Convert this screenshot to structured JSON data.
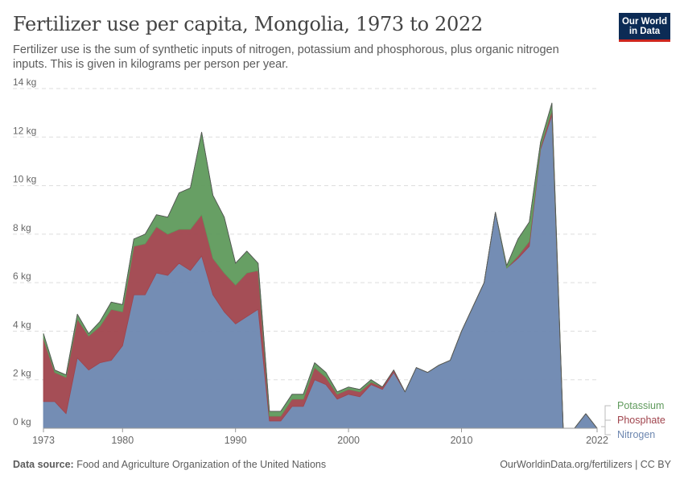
{
  "header": {
    "title": "Fertilizer use per capita, Mongolia, 1973 to 2022",
    "subtitle": "Fertilizer use is the sum of synthetic inputs of nitrogen, potassium and phosphorous, plus organic nitrogen inputs. This is given in kilograms per person per year.",
    "logo_line1": "Our World",
    "logo_line2": "in Data"
  },
  "footer": {
    "source_label": "Data source:",
    "source_text": " Food and Agriculture Organization of the United Nations",
    "link_text": "OurWorldinData.org/fertilizers | CC BY"
  },
  "colors": {
    "Nitrogen": "#6d87b0",
    "Phosphate": "#a0444d",
    "Potassium": "#5f9a5c",
    "grid": "#dddddd",
    "text": "#666666"
  },
  "chart_data": {
    "type": "area",
    "stacked": true,
    "unit": "kg",
    "ylim": [
      0,
      14
    ],
    "yticks": [
      0,
      2,
      4,
      6,
      8,
      10,
      12,
      14
    ],
    "ytick_labels": [
      "0 kg",
      "2 kg",
      "4 kg",
      "6 kg",
      "8 kg",
      "10 kg",
      "12 kg",
      "14 kg"
    ],
    "xlim": [
      1973,
      2022
    ],
    "xticks": [
      1973,
      1980,
      1990,
      2000,
      2010,
      2022
    ],
    "xtick_labels": [
      "1973",
      "1980",
      "1990",
      "2000",
      "2010",
      "2022"
    ],
    "grid": "horizontal-dashed",
    "legend": "right-bottom",
    "x": [
      1973,
      1974,
      1975,
      1976,
      1977,
      1978,
      1979,
      1980,
      1981,
      1982,
      1983,
      1984,
      1985,
      1986,
      1987,
      1988,
      1989,
      1990,
      1991,
      1992,
      1993,
      1994,
      1995,
      1996,
      1997,
      1998,
      1999,
      2000,
      2001,
      2002,
      2003,
      2004,
      2005,
      2006,
      2007,
      2008,
      2009,
      2010,
      2011,
      2012,
      2013,
      2014,
      2015,
      2016,
      2017,
      2018,
      2019,
      2020,
      2021,
      2022
    ],
    "series": [
      {
        "name": "Nitrogen",
        "values": [
          1.1,
          1.1,
          0.6,
          2.9,
          2.4,
          2.7,
          2.8,
          3.4,
          5.5,
          5.5,
          6.4,
          6.3,
          6.8,
          6.5,
          7.1,
          5.5,
          4.8,
          4.3,
          4.6,
          4.9,
          0.3,
          0.3,
          0.9,
          0.9,
          2.0,
          1.8,
          1.2,
          1.4,
          1.3,
          1.8,
          1.6,
          2.3,
          1.5,
          2.5,
          2.3,
          2.6,
          2.8,
          4.0,
          5.0,
          6.0,
          8.9,
          6.6,
          7.0,
          7.5,
          11.5,
          12.9,
          0.0,
          0.0,
          0.6,
          0.0
        ]
      },
      {
        "name": "Phosphate",
        "values": [
          2.6,
          1.2,
          1.5,
          1.6,
          1.4,
          1.5,
          2.1,
          1.4,
          2.0,
          2.1,
          1.9,
          1.7,
          1.4,
          1.7,
          1.7,
          1.5,
          1.6,
          1.6,
          1.8,
          1.6,
          0.2,
          0.2,
          0.3,
          0.3,
          0.5,
          0.3,
          0.2,
          0.2,
          0.2,
          0.1,
          0.1,
          0.1,
          0.0,
          0.0,
          0.0,
          0.0,
          0.0,
          0.0,
          0.0,
          0.0,
          0.0,
          0.0,
          0.1,
          0.2,
          0.1,
          0.2,
          0.0,
          0.0,
          0.0,
          0.0
        ]
      },
      {
        "name": "Potassium",
        "values": [
          0.2,
          0.1,
          0.1,
          0.2,
          0.1,
          0.2,
          0.3,
          0.3,
          0.3,
          0.4,
          0.5,
          0.7,
          1.5,
          1.7,
          3.4,
          2.6,
          2.3,
          0.9,
          0.9,
          0.3,
          0.2,
          0.2,
          0.2,
          0.2,
          0.2,
          0.2,
          0.1,
          0.1,
          0.1,
          0.1,
          0.0,
          0.0,
          0.0,
          0.0,
          0.0,
          0.0,
          0.0,
          0.0,
          0.0,
          0.0,
          0.0,
          0.1,
          0.7,
          0.8,
          0.2,
          0.3,
          0.0,
          0.0,
          0.0,
          0.0
        ]
      }
    ]
  }
}
